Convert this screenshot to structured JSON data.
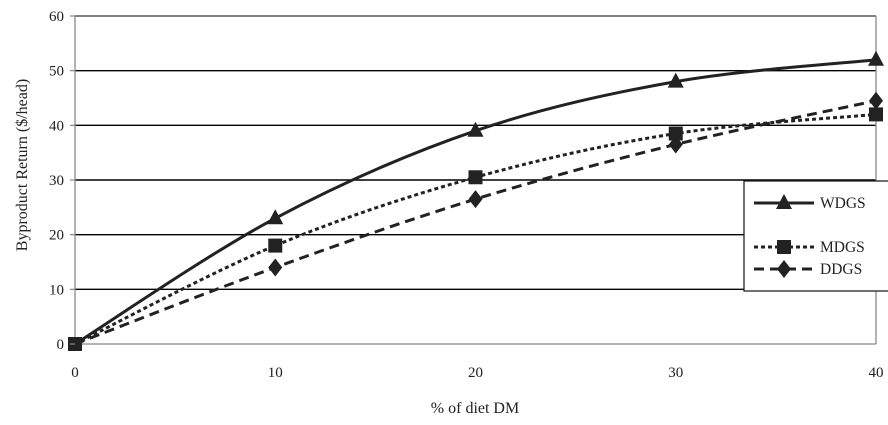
{
  "chart_data": {
    "type": "line",
    "xlabel": "% of diet DM",
    "ylabel": "Byproduct Return ($/head)",
    "xlim": [
      0,
      40
    ],
    "ylim": [
      0,
      60
    ],
    "x_ticks": [
      0,
      10,
      20,
      30,
      40
    ],
    "y_ticks": [
      0,
      10,
      20,
      30,
      40,
      50,
      60
    ],
    "grid": "horizontal",
    "legend_position": "right",
    "x": [
      0,
      10,
      20,
      30,
      40
    ],
    "series": [
      {
        "name": "WDGS",
        "values": [
          0,
          23,
          39,
          48,
          52
        ],
        "marker": "triangle",
        "dash": "solid"
      },
      {
        "name": "MDGS",
        "values": [
          0,
          18,
          30.5,
          38.5,
          42
        ],
        "marker": "square",
        "dash": "dotted"
      },
      {
        "name": "DDGS",
        "values": [
          0,
          14,
          26.5,
          36.5,
          44.5
        ],
        "marker": "diamond",
        "dash": "dashed"
      }
    ],
    "colors": {
      "line": "#222222",
      "grid": "#000000",
      "frame": "#888888"
    }
  }
}
